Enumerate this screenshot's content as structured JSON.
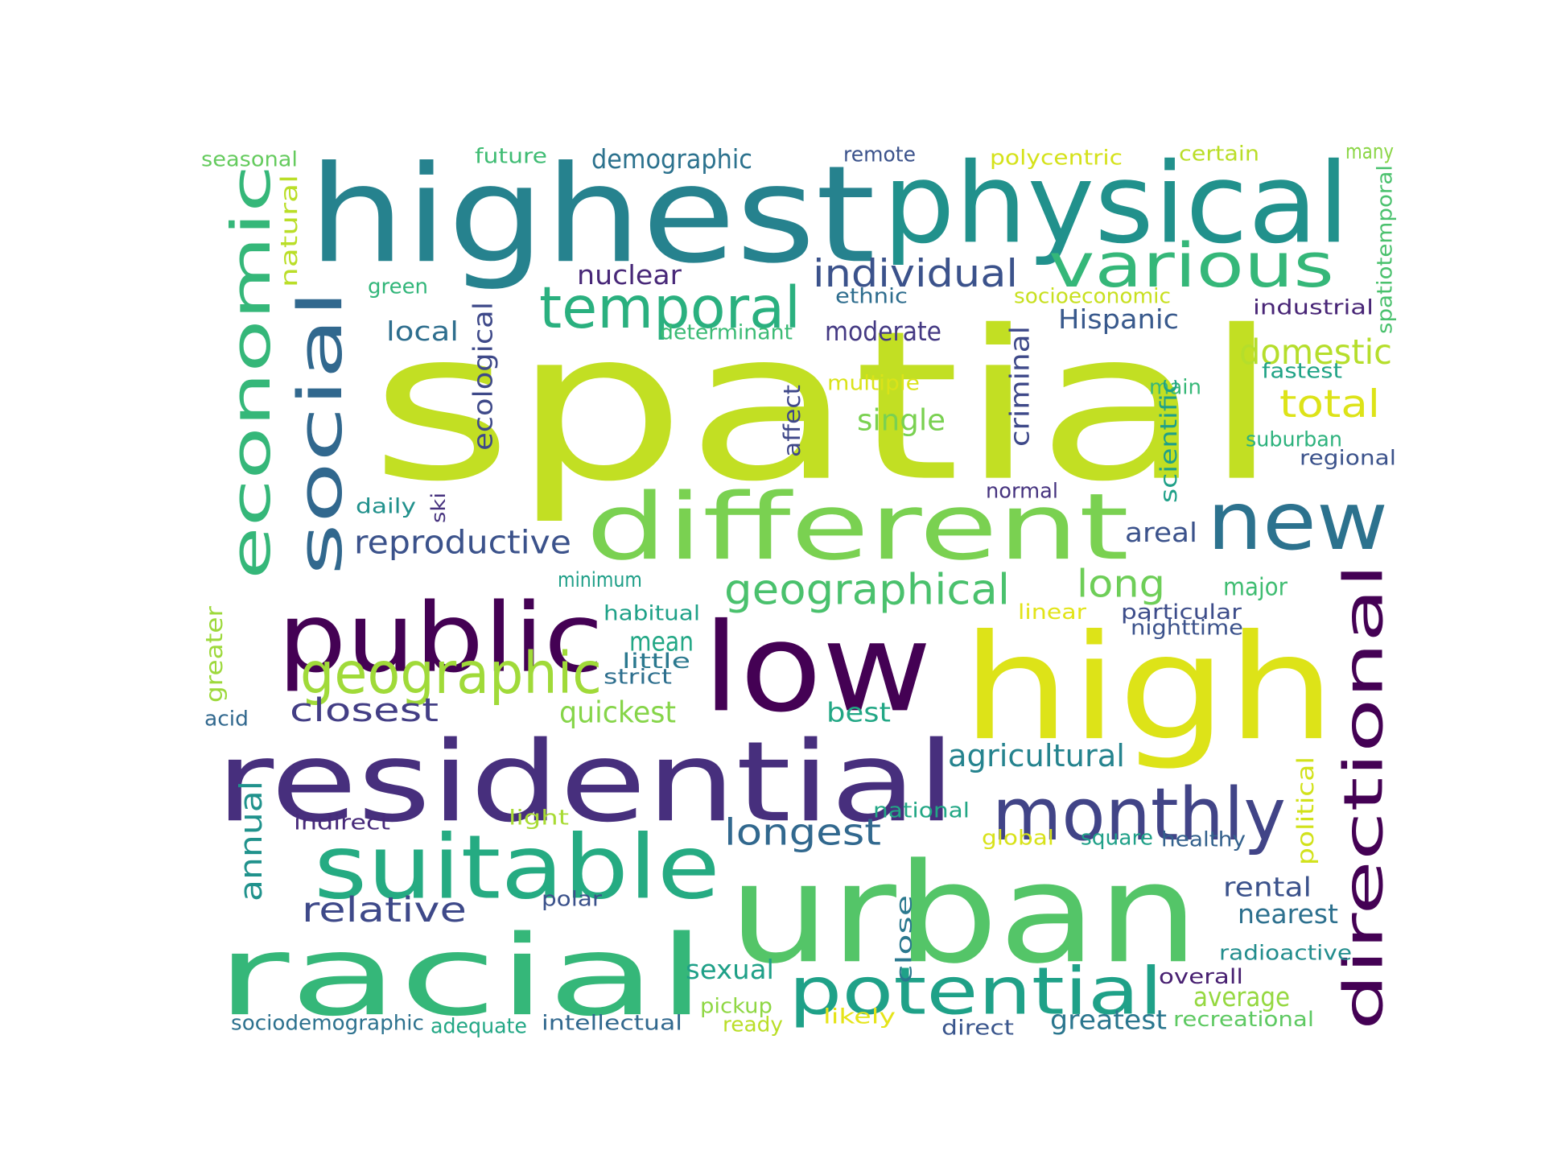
{
  "words": [
    {
      "text": "spatial",
      "color": "#c2df23"
    },
    {
      "text": "highest",
      "color": "#26828e"
    },
    {
      "text": "physical",
      "color": "#21918c"
    },
    {
      "text": "various",
      "color": "#35b779"
    },
    {
      "text": "temporal",
      "color": "#2ab07f"
    },
    {
      "text": "individual",
      "color": "#3b528b"
    },
    {
      "text": "economic",
      "color": "#35b779"
    },
    {
      "text": "social",
      "color": "#31688e"
    },
    {
      "text": "different",
      "color": "#7ad151"
    },
    {
      "text": "new",
      "color": "#2c728e"
    },
    {
      "text": "public",
      "color": "#440154"
    },
    {
      "text": "low",
      "color": "#440154"
    },
    {
      "text": "high",
      "color": "#dde318"
    },
    {
      "text": "directional",
      "color": "#440154"
    },
    {
      "text": "residential",
      "color": "#472f7d"
    },
    {
      "text": "geographic",
      "color": "#a0da39"
    },
    {
      "text": "geographical",
      "color": "#4ac16d"
    },
    {
      "text": "monthly",
      "color": "#414487"
    },
    {
      "text": "suitable",
      "color": "#25ab82"
    },
    {
      "text": "urban",
      "color": "#54c568"
    },
    {
      "text": "racial",
      "color": "#35b779"
    },
    {
      "text": "potential",
      "color": "#1fa188"
    },
    {
      "text": "demographic",
      "color": "#2c728e"
    },
    {
      "text": "reproductive",
      "color": "#3b528b"
    },
    {
      "text": "closest",
      "color": "#433e85"
    },
    {
      "text": "longest",
      "color": "#31688e"
    },
    {
      "text": "relative",
      "color": "#3e4989"
    },
    {
      "text": "total",
      "color": "#dde318"
    },
    {
      "text": "domestic",
      "color": "#b5de2b"
    },
    {
      "text": "long",
      "color": "#6ece58"
    },
    {
      "text": "nuclear",
      "color": "#482878"
    },
    {
      "text": "local",
      "color": "#2e6e8e"
    },
    {
      "text": "moderate",
      "color": "#443983"
    },
    {
      "text": "Hispanic",
      "color": "#38598c"
    },
    {
      "text": "ecological",
      "color": "#3e4989"
    },
    {
      "text": "criminal",
      "color": "#3e4989"
    },
    {
      "text": "annual",
      "color": "#20928c"
    },
    {
      "text": "single",
      "color": "#7ad151"
    },
    {
      "text": "agricultural",
      "color": "#25838e"
    },
    {
      "text": "quickest",
      "color": "#86d549"
    },
    {
      "text": "best",
      "color": "#22a785"
    },
    {
      "text": "mean",
      "color": "#22a785"
    },
    {
      "text": "rental",
      "color": "#3b528b"
    },
    {
      "text": "nearest",
      "color": "#2d708e"
    },
    {
      "text": "sexual",
      "color": "#1fa088"
    },
    {
      "text": "average",
      "color": "#95d840"
    },
    {
      "text": "greatest",
      "color": "#2a768e"
    },
    {
      "text": "areal",
      "color": "#3b528b"
    },
    {
      "text": "major",
      "color": "#40bd72"
    },
    {
      "text": "seasonal",
      "color": "#65cb5e"
    },
    {
      "text": "future",
      "color": "#3fbc73"
    },
    {
      "text": "remote",
      "color": "#3b528b"
    },
    {
      "text": "polycentric",
      "color": "#d5e21a"
    },
    {
      "text": "certain",
      "color": "#bade28"
    },
    {
      "text": "many",
      "color": "#8bd646"
    },
    {
      "text": "spatiotemporal",
      "color": "#4ac16d"
    },
    {
      "text": "natural",
      "color": "#bade28"
    },
    {
      "text": "green",
      "color": "#32b67a"
    },
    {
      "text": "ethnic",
      "color": "#2e6d8e"
    },
    {
      "text": "socioeconomic",
      "color": "#c8e020"
    },
    {
      "text": "determinant",
      "color": "#3bbb75"
    },
    {
      "text": "industrial",
      "color": "#482576"
    },
    {
      "text": "multiple",
      "color": "#dae319"
    },
    {
      "text": "fastest",
      "color": "#20a386"
    },
    {
      "text": "main",
      "color": "#37b878"
    },
    {
      "text": "affect",
      "color": "#3f4889"
    },
    {
      "text": "scientific",
      "color": "#1fa088"
    },
    {
      "text": "suburban",
      "color": "#2db27d"
    },
    {
      "text": "regional",
      "color": "#3b528b"
    },
    {
      "text": "daily",
      "color": "#21918c"
    },
    {
      "text": "ski",
      "color": "#46327e"
    },
    {
      "text": "normal",
      "color": "#46337f"
    },
    {
      "text": "minimum",
      "color": "#1f9f88"
    },
    {
      "text": "habitual",
      "color": "#1fa188"
    },
    {
      "text": "linear",
      "color": "#e2e418"
    },
    {
      "text": "particular",
      "color": "#3d4d8a"
    },
    {
      "text": "nighttime",
      "color": "#3b528b"
    },
    {
      "text": "little",
      "color": "#2a788e"
    },
    {
      "text": "strict",
      "color": "#2e6f8e"
    },
    {
      "text": "greater",
      "color": "#9dd93b"
    },
    {
      "text": "acid",
      "color": "#31688e"
    },
    {
      "text": "indirect",
      "color": "#472a7a"
    },
    {
      "text": "light",
      "color": "#a8db34"
    },
    {
      "text": "national",
      "color": "#22a785"
    },
    {
      "text": "global",
      "color": "#d8e219"
    },
    {
      "text": "square",
      "color": "#1fa088"
    },
    {
      "text": "healthy",
      "color": "#34618d"
    },
    {
      "text": "political",
      "color": "#d2e21b"
    },
    {
      "text": "polar",
      "color": "#3b528b"
    },
    {
      "text": "close",
      "color": "#2a788e"
    },
    {
      "text": "radioactive",
      "color": "#228d8d"
    },
    {
      "text": "overall",
      "color": "#482071"
    },
    {
      "text": "pickup",
      "color": "#8fd744"
    },
    {
      "text": "ready",
      "color": "#bade28"
    },
    {
      "text": "likely",
      "color": "#e5e419"
    },
    {
      "text": "direct",
      "color": "#39558c"
    },
    {
      "text": "recreational",
      "color": "#5ec962"
    },
    {
      "text": "sociodemographic",
      "color": "#2c718e"
    },
    {
      "text": "adequate",
      "color": "#22a785"
    },
    {
      "text": "intellectual",
      "color": "#31688e"
    }
  ]
}
